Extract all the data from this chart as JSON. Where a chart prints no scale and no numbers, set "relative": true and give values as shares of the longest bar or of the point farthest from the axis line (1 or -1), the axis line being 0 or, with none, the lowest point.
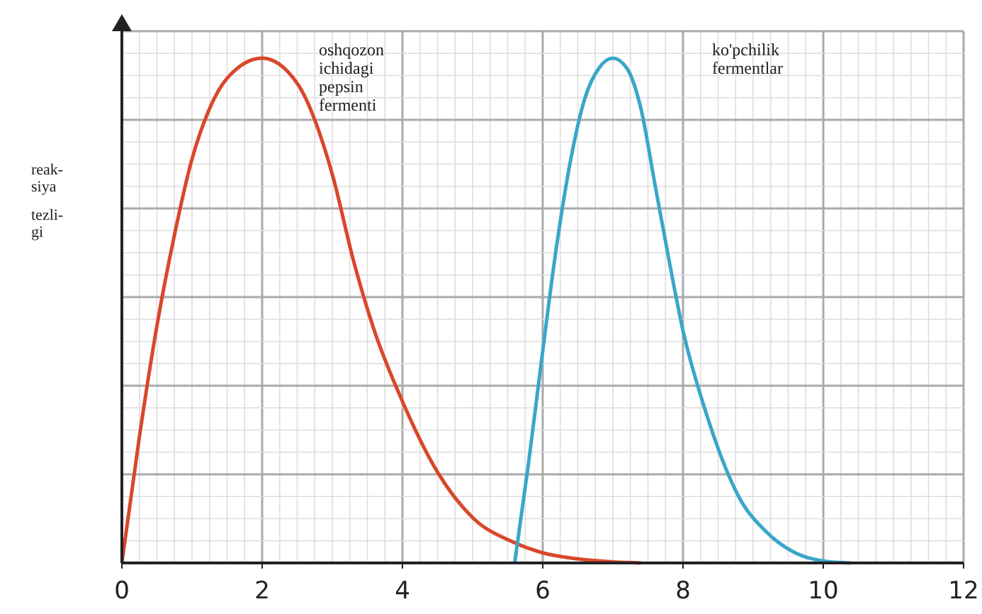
{
  "chart_data": {
    "type": "line",
    "relative": true,
    "ylabel": "reak- siya tezli- gi",
    "xlim": [
      0,
      12
    ],
    "xticks": [
      0,
      2,
      4,
      6,
      8,
      10,
      12
    ],
    "grid": true,
    "marker": "none",
    "line_style": "solid",
    "series": [
      {
        "name": "oshqozon ichidagi pepsin fermenti",
        "color": "#d9472b",
        "x": [
          0,
          0.25,
          0.5,
          0.75,
          1,
          1.25,
          1.5,
          2,
          2.5,
          3,
          3.3,
          3.6,
          4,
          4.5,
          5,
          5.6,
          6,
          6.5,
          7,
          7.4
        ],
        "values": [
          0,
          0.25,
          0.47,
          0.65,
          0.8,
          0.9,
          0.96,
          1,
          0.95,
          0.77,
          0.6,
          0.46,
          0.32,
          0.18,
          0.09,
          0.04,
          0.02,
          0.008,
          0.002,
          0
        ]
      },
      {
        "name": "ko'pchilik fermentlar",
        "color": "#3aa6c9",
        "x": [
          5.6,
          5.8,
          6,
          6.2,
          6.4,
          6.6,
          6.8,
          7,
          7.2,
          7.4,
          7.6,
          7.8,
          8,
          8.3,
          8.8,
          9.2,
          9.6,
          10,
          10.4
        ],
        "values": [
          0,
          0.2,
          0.42,
          0.63,
          0.8,
          0.92,
          0.98,
          1,
          0.98,
          0.9,
          0.75,
          0.6,
          0.46,
          0.31,
          0.13,
          0.06,
          0.02,
          0.004,
          0
        ]
      }
    ]
  }
}
